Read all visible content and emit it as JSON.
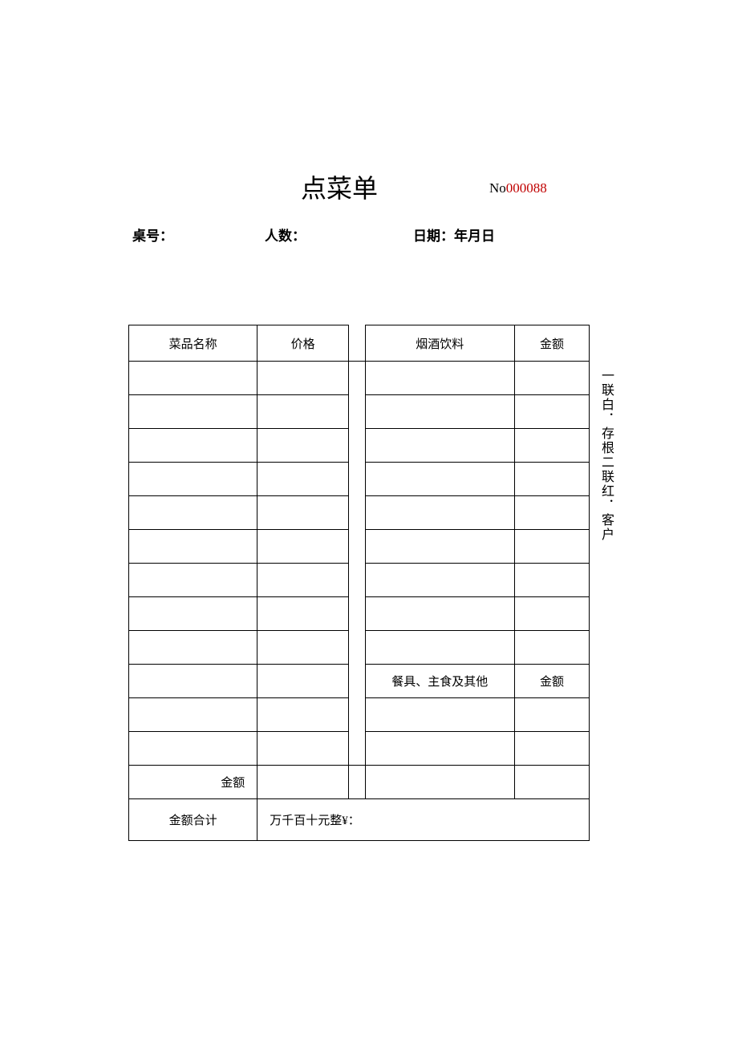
{
  "title": "点菜单",
  "receipt": {
    "prefix": "No",
    "number": "000088"
  },
  "info": {
    "table_label": "桌号：",
    "people_label": "人数：",
    "date_label": "日期：年月日"
  },
  "headers": {
    "dish_name": "菜品名称",
    "price": "价格",
    "drinks": "烟酒饮料",
    "amount": "金额",
    "tableware": "餐具、主食及其他",
    "subtotal": "金额",
    "grand_total_label": "金额合计",
    "grand_total_value": "万千百十元整¥："
  },
  "side_note": "一联白．存根二联红．客户"
}
